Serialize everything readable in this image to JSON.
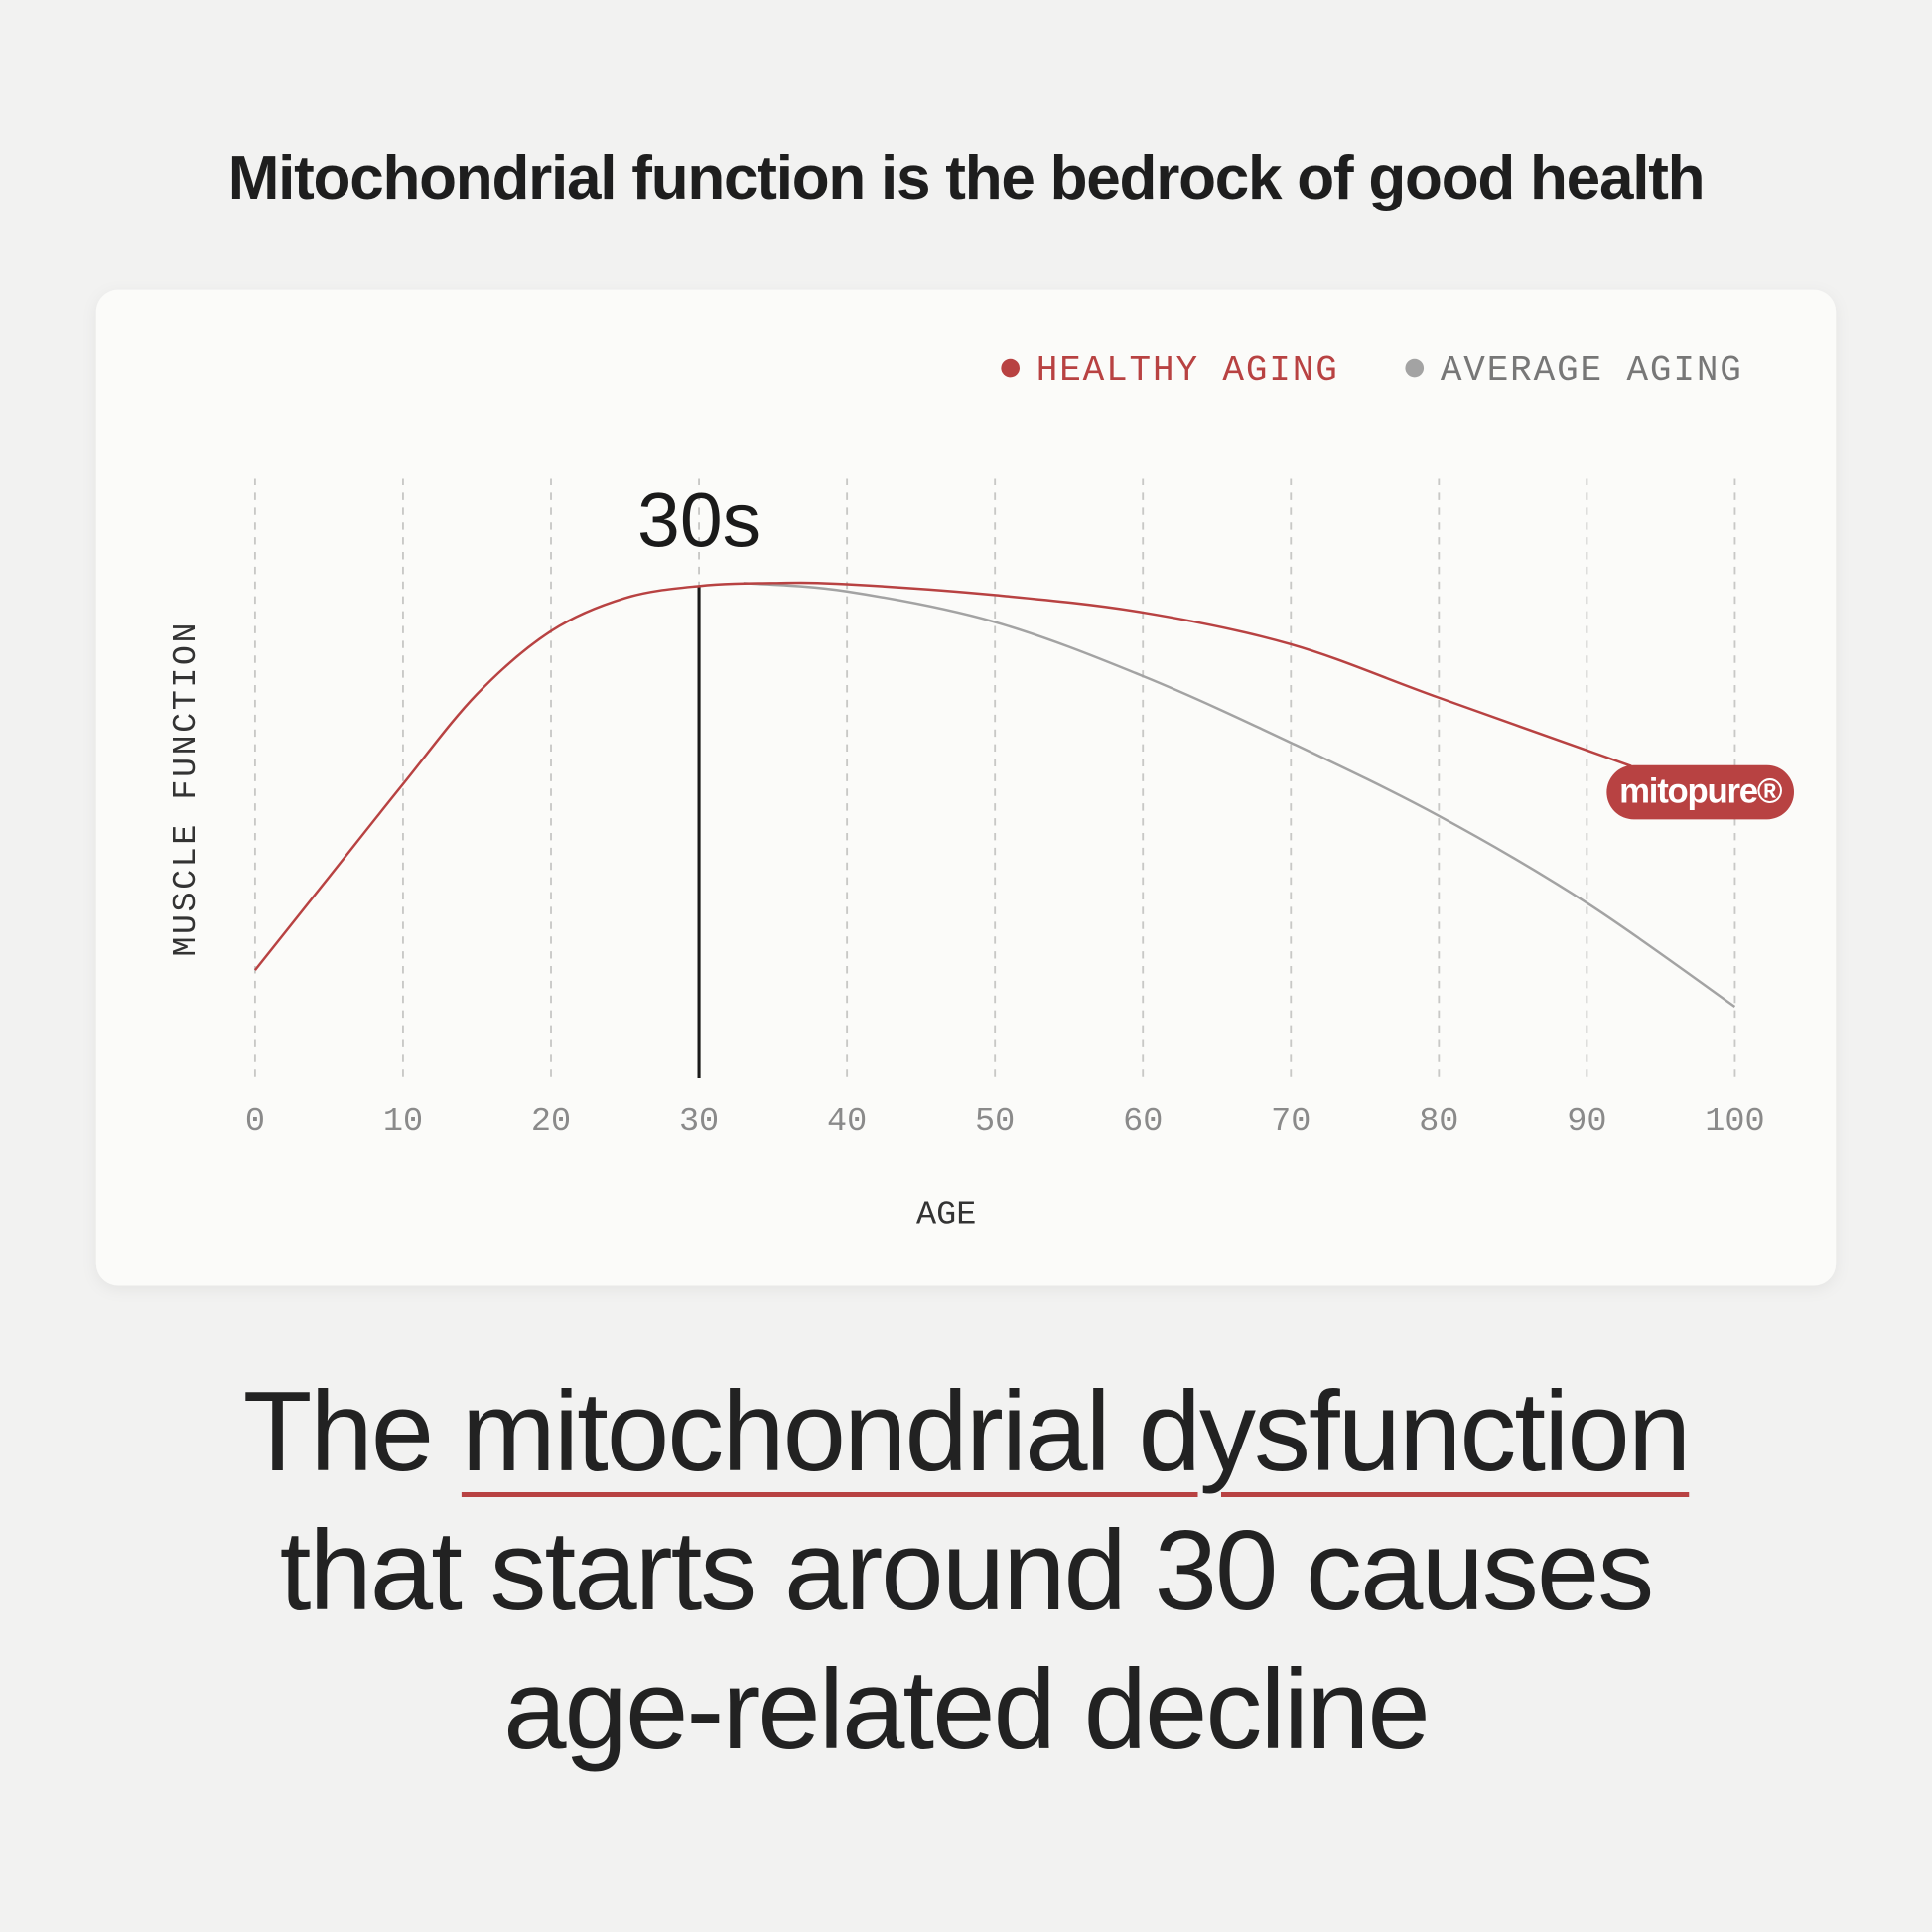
{
  "chart_data": {
    "type": "line",
    "title": "Mitochondrial function is the bedrock of good health",
    "x_label": "AGE",
    "y_label": "MUSCLE FUNCTION",
    "xlim": [
      0,
      100
    ],
    "xticks": [
      0,
      10,
      20,
      30,
      40,
      50,
      60,
      70,
      80,
      90,
      100
    ],
    "ylim": [
      0,
      100
    ],
    "grid": true,
    "legend": "top-right",
    "series": [
      {
        "name": "HEALTHY AGING",
        "color": "#b84242",
        "x": [
          0,
          5,
          10,
          15,
          20,
          25,
          30,
          35,
          40,
          50,
          60,
          70,
          80,
          93
        ],
        "values": [
          18,
          33.5,
          49,
          64,
          74.5,
          80,
          82,
          82.5,
          82.3,
          80.5,
          77.6,
          72.3,
          63.4,
          52
        ]
      },
      {
        "name": "AVERAGE AGING",
        "color": "#a3a3a3",
        "x": [
          33,
          40,
          50,
          60,
          70,
          80,
          90,
          100
        ],
        "values": [
          82.5,
          81.1,
          76,
          67,
          55.9,
          43.7,
          29.2,
          11.9
        ]
      }
    ],
    "annotation": {
      "label": "30s",
      "x": 30,
      "y": 82
    },
    "badge": "mitopure®",
    "caption": {
      "lead": "The",
      "emphasis": "mitochondrial dysfunction",
      "rest": [
        "that starts around 30 causes",
        "age-related decline"
      ]
    }
  }
}
